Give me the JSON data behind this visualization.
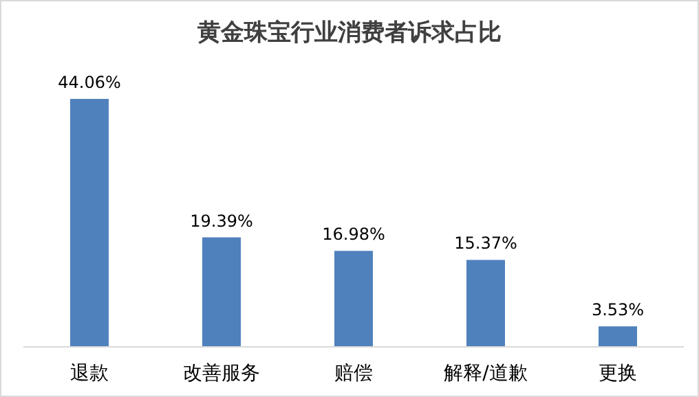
{
  "chart_data": {
    "type": "bar",
    "title": "黄金珠宝行业消费者诉求占比",
    "categories": [
      "退款",
      "改善服务",
      "赔偿",
      "解释/道歉",
      "更换"
    ],
    "values": [
      44.06,
      19.39,
      16.98,
      15.37,
      3.53
    ],
    "value_labels": [
      "44.06%",
      "19.39%",
      "16.98%",
      "15.37%",
      "3.53%"
    ],
    "color": "#4f81bd"
  }
}
